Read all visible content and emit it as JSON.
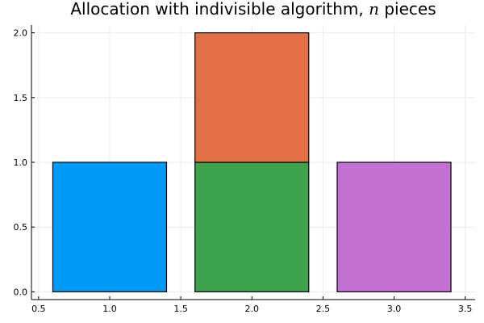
{
  "chart_data": {
    "type": "bar",
    "title_prefix": "Allocation with indivisible algorithm, ",
    "title_var": "n",
    "title_suffix": " pieces",
    "xlabel": "",
    "ylabel": "",
    "xlim": [
      0.45,
      3.57
    ],
    "ylim": [
      -0.06,
      2.06
    ],
    "xticks": [
      0.5,
      1.0,
      1.5,
      2.0,
      2.5,
      3.0,
      3.5
    ],
    "xtick_labels": [
      "0.5",
      "1.0",
      "1.5",
      "2.0",
      "2.5",
      "3.0",
      "3.5"
    ],
    "yticks": [
      0.0,
      0.5,
      1.0,
      1.5,
      2.0
    ],
    "ytick_labels": [
      "0.0",
      "0.5",
      "1.0",
      "1.5",
      "2.0"
    ],
    "grid": true,
    "legend": "none",
    "bar_width": 0.8,
    "bars": [
      {
        "x": 1,
        "bottom": 0,
        "value": 1,
        "color": "#009af9"
      },
      {
        "x": 2,
        "bottom": 0,
        "value": 1,
        "color": "#3da44d"
      },
      {
        "x": 2,
        "bottom": 1,
        "value": 1,
        "color": "#e26f46"
      },
      {
        "x": 3,
        "bottom": 0,
        "value": 1,
        "color": "#c271d2"
      }
    ]
  }
}
